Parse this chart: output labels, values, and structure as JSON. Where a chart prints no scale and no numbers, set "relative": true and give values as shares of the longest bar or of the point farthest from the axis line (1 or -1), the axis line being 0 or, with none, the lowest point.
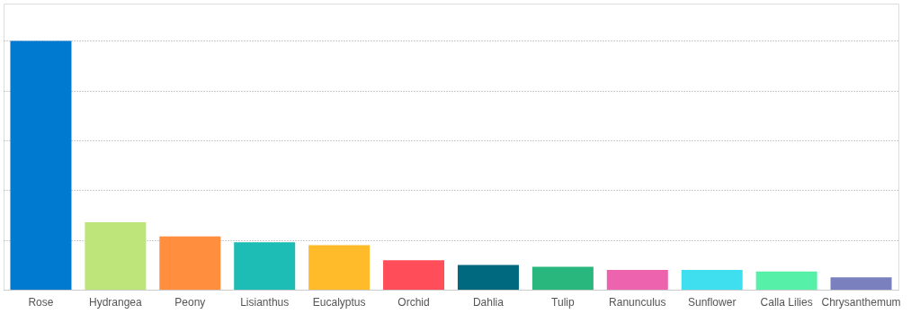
{
  "chart_data": {
    "type": "bar",
    "relative": true,
    "grid": "y",
    "categories": [
      "Rose",
      "Hydrangea",
      "Peony",
      "Lisianthus",
      "Eucalyptus",
      "Orchid",
      "Dahlia",
      "Tulip",
      "Ranunculus",
      "Sunflower",
      "Calla Lilies",
      "Chrysanthemum"
    ],
    "values": [
      1,
      0.271,
      0.214,
      0.191,
      0.179,
      0.118,
      0.099,
      0.092,
      0.08,
      0.08,
      0.073,
      0.05
    ],
    "colors": [
      "#0079d1",
      "#bde57a",
      "#ff8f3f",
      "#1dbcb4",
      "#ffbb2a",
      "#ff4d5a",
      "#00687f",
      "#2ab77e",
      "#ee63ad",
      "#40dff0",
      "#56f0a8",
      "#7a7fbd"
    ]
  }
}
